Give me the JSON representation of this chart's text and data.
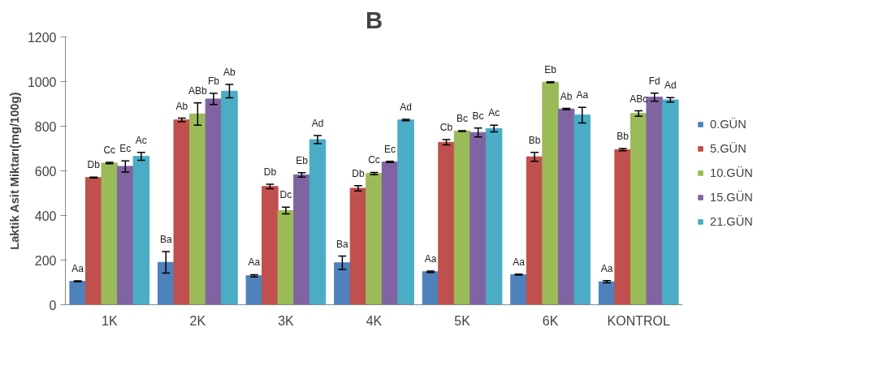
{
  "chart_data": {
    "type": "bar",
    "title": "B",
    "ylabel": "Laktik Asit Miktarı(mg/100g)",
    "categories": [
      "1K",
      "2K",
      "3K",
      "4K",
      "5K",
      "6K",
      "KONTROL"
    ],
    "ylim": [
      0,
      1200
    ],
    "yticks": [
      0,
      200,
      400,
      600,
      800,
      1000,
      1200
    ],
    "grid": false,
    "legend": "right",
    "series": [
      {
        "name": "0.GÜN",
        "color": "#4f81bd",
        "values": [
          105,
          190,
          130,
          188,
          148,
          135,
          103
        ],
        "errors": [
          2,
          48,
          5,
          30,
          3,
          2,
          5
        ],
        "value_labels": [
          "Aa",
          "Ba",
          "Aa",
          "Ba",
          "Aa",
          "Aa",
          "Aa"
        ]
      },
      {
        "name": "5.GÜN",
        "color": "#c0504d",
        "values": [
          570,
          828,
          530,
          522,
          728,
          663,
          695
        ],
        "errors": [
          2,
          8,
          10,
          12,
          12,
          20,
          5
        ],
        "value_labels": [
          "Db",
          "Ab",
          "Db",
          "Db",
          "Cb",
          "Bb",
          "Bb"
        ]
      },
      {
        "name": "10.GÜN",
        "color": "#9bbb59",
        "values": [
          635,
          855,
          422,
          588,
          778,
          997,
          857
        ],
        "errors": [
          3,
          50,
          15,
          5,
          2,
          2,
          12
        ],
        "value_labels": [
          "Cc",
          "ABb",
          "Dc",
          "Cc",
          "Bc",
          "Eb",
          "ABc"
        ]
      },
      {
        "name": "15.GÜN",
        "color": "#8064a2",
        "values": [
          620,
          922,
          582,
          640,
          772,
          877,
          930
        ],
        "errors": [
          25,
          25,
          10,
          3,
          20,
          3,
          18
        ],
        "value_labels": [
          "Ec",
          "Fb",
          "Eb",
          "Ec",
          "Bc",
          "Ab",
          "Fd"
        ]
      },
      {
        "name": "21.GÜN",
        "color": "#4bacc6",
        "values": [
          665,
          957,
          740,
          828,
          790,
          850,
          918
        ],
        "errors": [
          18,
          30,
          18,
          3,
          15,
          35,
          10
        ],
        "value_labels": [
          "Ac",
          "Ab",
          "Ad",
          "Ad",
          "Ac",
          "Aa",
          "Ad"
        ]
      }
    ]
  }
}
